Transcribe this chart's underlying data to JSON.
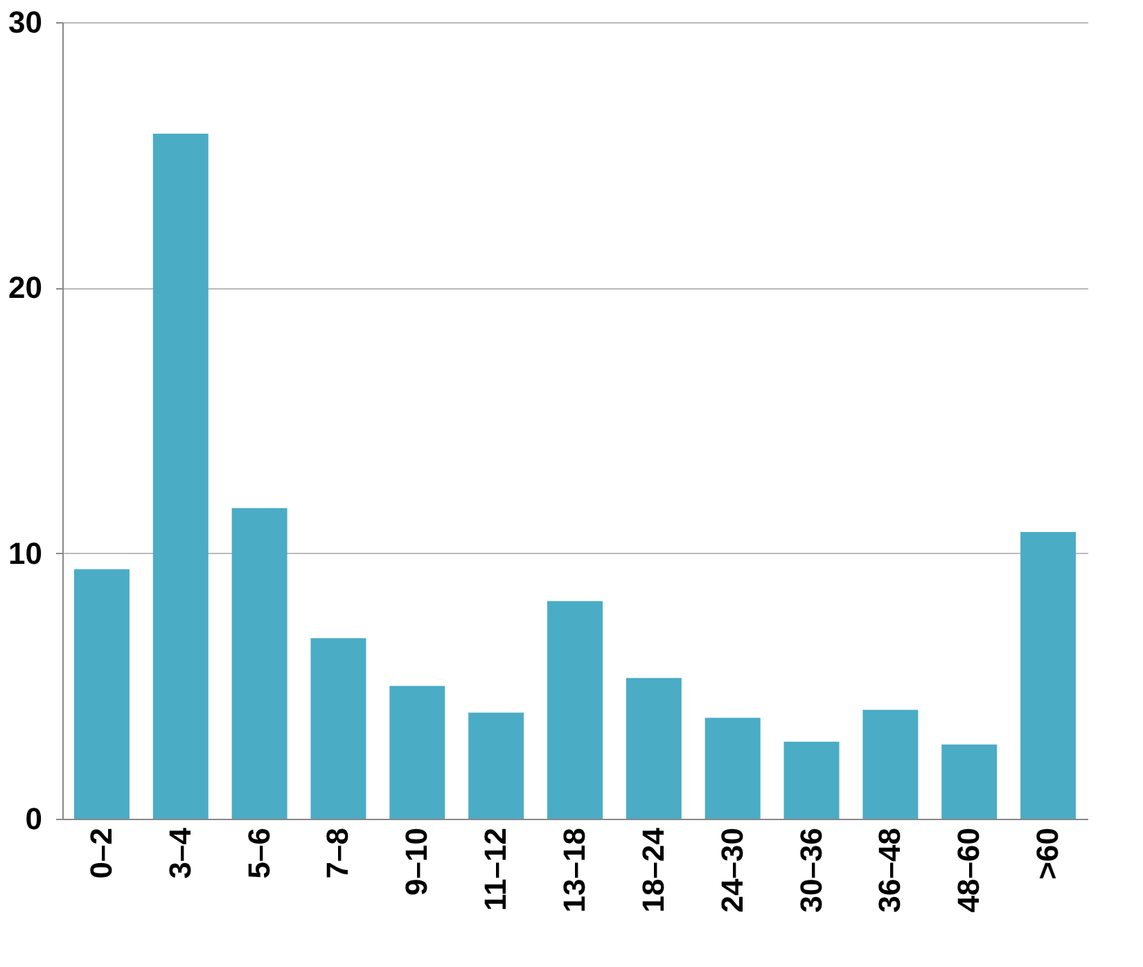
{
  "chart_data": {
    "type": "bar",
    "categories": [
      "0–2",
      "3–4",
      "5–6",
      "7–8",
      "9–10",
      "11–12",
      "13–18",
      "18–24",
      "24–30",
      "30–36",
      "36–48",
      "48–60",
      ">60"
    ],
    "values": [
      9.4,
      25.8,
      11.7,
      6.8,
      5.0,
      4.0,
      8.2,
      5.3,
      3.8,
      2.9,
      4.1,
      2.8,
      10.8
    ],
    "color": "#4bacc6",
    "ylim": [
      0,
      30
    ],
    "yticks": [
      0,
      10,
      20,
      30
    ],
    "grid": "y"
  }
}
